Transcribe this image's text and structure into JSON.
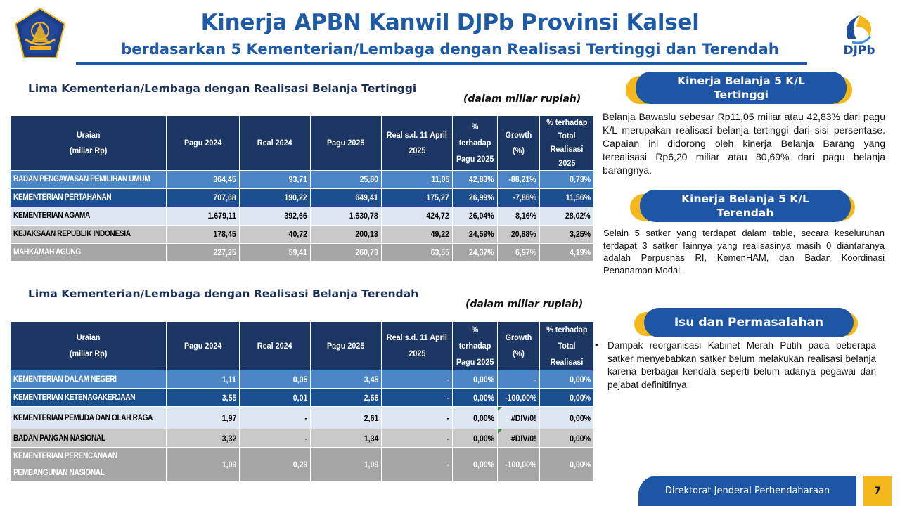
{
  "header": {
    "title": "Kinerja APBN Kanwil DJPb Provinsi Kalsel",
    "subtitle": "berdasarkan 5 Kementerian/Lembaga dengan Realisasi Tertinggi dan Terendah",
    "right_logo_text": "DJPb"
  },
  "colors": {
    "brand_blue": "#1e56a6",
    "navy_header": "#1c3763",
    "accent_yellow": "#f5b81c"
  },
  "top_table": {
    "title": "Lima Kementerian/Lembaga dengan Realisasi Belanja Tertinggi",
    "unit_note": "(dalam miliar rupiah)",
    "headers": {
      "uraian_1": "Uraian",
      "uraian_2": "(miliar Rp)",
      "pagu2024": "Pagu 2024",
      "real2024": "Real 2024",
      "pagu2025": "Pagu 2025",
      "real_1": "Real s.d. 11 April",
      "real_2": "2025",
      "pct_pagu_1": "% terhadap",
      "pct_pagu_2": "Pagu 2025",
      "growth": "Growth (%)",
      "pct_total_1": "% terhadap",
      "pct_total_2": "Total Realisasi",
      "pct_total_3": "2025"
    },
    "rows": [
      [
        "BADAN PENGAWASAN PEMILIHAN UMUM",
        "364,45",
        "93,71",
        "25,80",
        "11,05",
        "42,83%",
        "-88,21%",
        "0,73%"
      ],
      [
        "KEMENTERIAN PERTAHANAN",
        "707,68",
        "190,22",
        "649,41",
        "175,27",
        "26,99%",
        "-7,86%",
        "11,56%"
      ],
      [
        "KEMENTERIAN AGAMA",
        "1.679,11",
        "392,66",
        "1.630,78",
        "424,72",
        "26,04%",
        "8,16%",
        "28,02%"
      ],
      [
        "KEJAKSAAN REPUBLIK INDONESIA",
        "178,45",
        "40,72",
        "200,13",
        "49,22",
        "24,59%",
        "20,88%",
        "3,25%"
      ],
      [
        "MAHKAMAH AGUNG",
        "227,25",
        "59,41",
        "260,73",
        "63,55",
        "24,37%",
        "6,97%",
        "4,19%"
      ]
    ]
  },
  "bottom_table": {
    "title": "Lima Kementerian/Lembaga dengan Realisasi Belanja Terendah",
    "unit_note": "(dalam miliar rupiah)",
    "headers": {
      "uraian_1": "Uraian",
      "uraian_2": "(miliar Rp)",
      "pagu2024": "Pagu 2024",
      "real2024": "Real 2024",
      "pagu2025": "Pagu 2025",
      "real_1": "Real s.d. 11 April",
      "real_2": "2025",
      "pct_pagu_1": "% terhadap",
      "pct_pagu_2": "Pagu 2025",
      "growth": "Growth (%)",
      "pct_total_1": "% terhadap",
      "pct_total_2": "Total Realisasi"
    },
    "rows": [
      [
        "KEMENTERIAN DALAM  NEGERI",
        "1,11",
        "0,05",
        "3,45",
        "-",
        "0,00%",
        "-",
        "0,00%"
      ],
      [
        "KEMENTERIAN KETENAGAKERJAAN",
        "3,55",
        "0,01",
        "2,66",
        "-",
        "0,00%",
        "-100,00%",
        "0,00%"
      ],
      [
        "KEMENTERIAN PEMUDA DAN OLAH RAGA",
        "1,97",
        "-",
        "2,61",
        "-",
        "0,00%",
        "#DIV/0!",
        "0,00%"
      ],
      [
        "BADAN PANGAN NASIONAL",
        "3,32",
        "-",
        "1,34",
        "-",
        "0,00%",
        "#DIV/0!",
        "0,00%"
      ],
      [
        "KEMENTERIAN PERENCANAAN",
        "1,09",
        "0,29",
        "1,09",
        "-",
        "0,00%",
        "-100,00%",
        "0,00%"
      ]
    ],
    "row5_name_line2": "PEMBANGUNAN NASIONAL"
  },
  "panel_highest": {
    "title_1": "Kinerja Belanja 5 K/L",
    "title_2": "Tertinggi",
    "text": "Belanja Bawaslu sebesar Rp11,05 miliar atau 42,83% dari pagu K/L merupakan realisasi belanja tertinggi dari sisi persentase. Capaian ini didorong oleh kinerja Belanja Barang yang terealisasi Rp6,20 miliar atau 80,69% dari pagu belanja barangnya."
  },
  "panel_lowest": {
    "title_1": "Kinerja Belanja 5 K/L",
    "title_2": "Terendah",
    "text": "Selain 5 satker yang terdapat dalam table, secara keseluruhan terdapat 3 satker lainnya yang realisasinya masih 0 diantaranya adalah Perpusnas RI, KemenHAM, dan Badan Koordinasi Penanaman Modal."
  },
  "panel_issues": {
    "title": "Isu dan Permasalahan",
    "bullet": "•",
    "text": "Dampak reorganisasi Kabinet Merah Putih pada beberapa satker menyebabkan satker belum melakukan realisasi belanja karena berbagai kendala seperti belum adanya pegawai dan pejabat definitifnya."
  },
  "footer": {
    "org": "Direktorat Jenderal Perbendaharaan",
    "page": "7"
  }
}
